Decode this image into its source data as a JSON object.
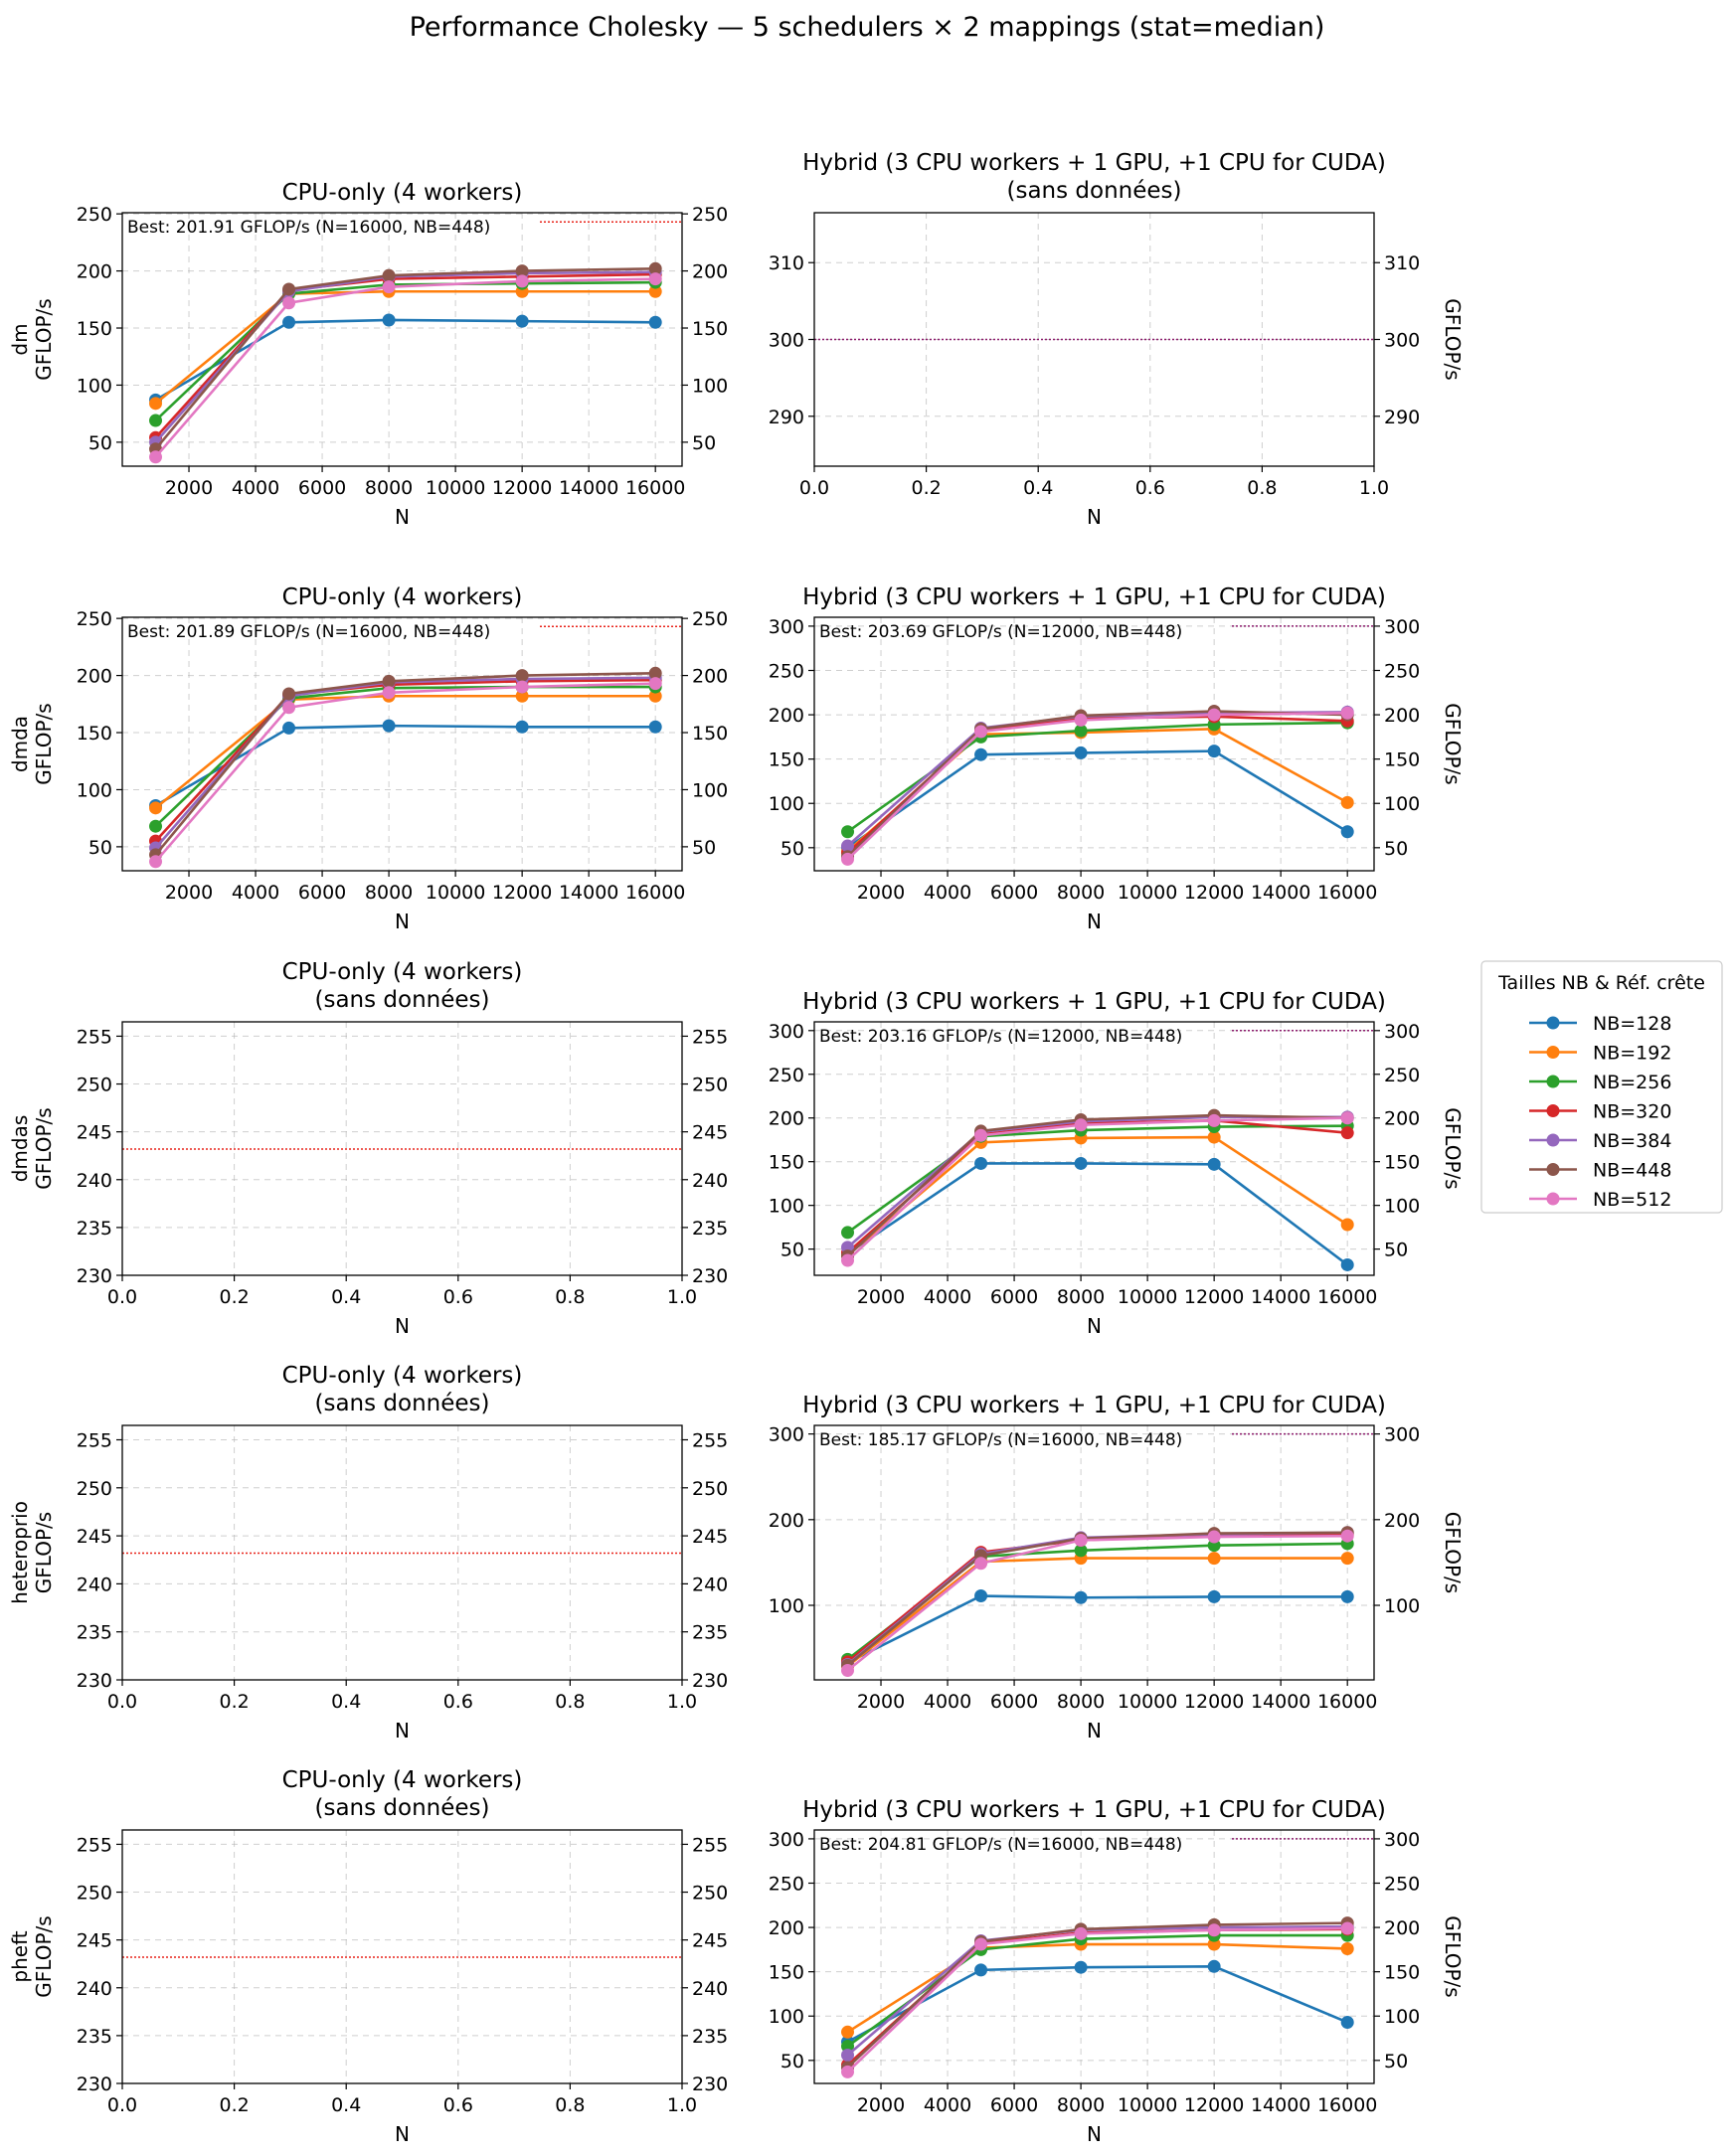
{
  "title": "Performance Cholesky — 5 schedulers × 2 mappings  (stat=median)",
  "colors": {
    "NB=128": "#1f77b4",
    "NB=192": "#ff7f0e",
    "NB=256": "#2ca02c",
    "NB=320": "#d62728",
    "NB=384": "#9467bd",
    "NB=448": "#8c564b",
    "NB=512": "#e377c2",
    "cpu_ref": "#e8231a",
    "hyb_ref": "#8b1a6b"
  },
  "legend": {
    "title": "Tailles NB & Réf. crête",
    "entries": [
      "NB=128",
      "NB=192",
      "NB=256",
      "NB=320",
      "NB=384",
      "NB=448",
      "NB=512"
    ]
  },
  "chart_data": [
    {
      "type": "line",
      "scheduler": "dm",
      "title": "CPU-only (4 workers)",
      "subtitle": "",
      "xlabel": "N",
      "ylabel": "GFLOP/s",
      "ylim": [
        29,
        251
      ],
      "xlim": [
        0,
        16800
      ],
      "yticks": [
        50,
        100,
        150,
        200,
        250
      ],
      "xticks": [
        2000,
        4000,
        6000,
        8000,
        10000,
        12000,
        14000,
        16000
      ],
      "ref_line": 243,
      "best_label": "Best: 201.91 GFLOP/s (N=16000, NB=448)",
      "grid": true,
      "x": [
        1000,
        5000,
        8000,
        12000,
        16000
      ],
      "series": [
        {
          "name": "NB=128",
          "values": [
            87,
            155,
            157,
            156,
            155
          ]
        },
        {
          "name": "NB=192",
          "values": [
            84,
            180,
            182,
            182,
            182
          ]
        },
        {
          "name": "NB=256",
          "values": [
            69,
            180,
            188,
            189,
            190
          ]
        },
        {
          "name": "NB=320",
          "values": [
            54,
            183,
            193,
            195,
            197
          ]
        },
        {
          "name": "NB=384",
          "values": [
            50,
            182,
            195,
            198,
            199
          ]
        },
        {
          "name": "NB=448",
          "values": [
            44,
            184,
            196,
            200,
            202
          ]
        },
        {
          "name": "NB=512",
          "values": [
            37,
            172,
            186,
            191,
            193
          ]
        }
      ]
    },
    {
      "type": "line",
      "scheduler": "dm",
      "title": "Hybrid (3 CPU workers + 1 GPU, +1 CPU for CUDA)",
      "subtitle": "(sans données)",
      "xlabel": "N",
      "ylabel": "GFLOP/s",
      "ylim": [
        283.5,
        316.5
      ],
      "xlim": [
        0,
        1
      ],
      "yticks": [
        290,
        300,
        310
      ],
      "xticks": [
        0.0,
        0.2,
        0.4,
        0.6,
        0.8,
        1.0
      ],
      "ref_line": 300,
      "best_label": "",
      "grid": true,
      "x": [],
      "series": []
    },
    {
      "type": "line",
      "scheduler": "dmda",
      "title": "CPU-only (4 workers)",
      "subtitle": "",
      "xlabel": "N",
      "ylabel": "GFLOP/s",
      "ylim": [
        29,
        251
      ],
      "xlim": [
        0,
        16800
      ],
      "yticks": [
        50,
        100,
        150,
        200,
        250
      ],
      "xticks": [
        2000,
        4000,
        6000,
        8000,
        10000,
        12000,
        14000,
        16000
      ],
      "ref_line": 243,
      "best_label": "Best: 201.89 GFLOP/s (N=16000, NB=448)",
      "grid": true,
      "x": [
        1000,
        5000,
        8000,
        12000,
        16000
      ],
      "series": [
        {
          "name": "NB=128",
          "values": [
            86,
            154,
            156,
            155,
            155
          ]
        },
        {
          "name": "NB=192",
          "values": [
            84,
            179,
            182,
            182,
            182
          ]
        },
        {
          "name": "NB=256",
          "values": [
            68,
            180,
            189,
            190,
            190
          ]
        },
        {
          "name": "NB=320",
          "values": [
            55,
            183,
            192,
            195,
            196
          ]
        },
        {
          "name": "NB=384",
          "values": [
            49,
            182,
            194,
            197,
            198
          ]
        },
        {
          "name": "NB=448",
          "values": [
            43,
            184,
            195,
            200,
            202
          ]
        },
        {
          "name": "NB=512",
          "values": [
            37,
            172,
            185,
            190,
            193
          ]
        }
      ]
    },
    {
      "type": "line",
      "scheduler": "dmda",
      "title": "Hybrid (3 CPU workers + 1 GPU, +1 CPU for CUDA)",
      "subtitle": "",
      "xlabel": "N",
      "ylabel": "GFLOP/s",
      "ylim": [
        24,
        310
      ],
      "xlim": [
        0,
        16800
      ],
      "yticks": [
        50,
        100,
        150,
        200,
        250,
        300
      ],
      "xticks": [
        2000,
        4000,
        6000,
        8000,
        10000,
        12000,
        14000,
        16000
      ],
      "ref_line": 300,
      "best_label": "Best: 203.69 GFLOP/s (N=12000, NB=448)",
      "grid": true,
      "x": [
        1000,
        5000,
        8000,
        12000,
        16000
      ],
      "series": [
        {
          "name": "NB=128",
          "values": [
            50,
            155,
            157,
            159,
            68
          ]
        },
        {
          "name": "NB=192",
          "values": [
            46,
            178,
            180,
            184,
            101
          ]
        },
        {
          "name": "NB=256",
          "values": [
            68,
            175,
            182,
            189,
            191
          ]
        },
        {
          "name": "NB=320",
          "values": [
            44,
            182,
            196,
            198,
            193
          ]
        },
        {
          "name": "NB=384",
          "values": [
            52,
            185,
            198,
            202,
            203
          ]
        },
        {
          "name": "NB=448",
          "values": [
            40,
            184,
            199,
            204,
            200
          ]
        },
        {
          "name": "NB=512",
          "values": [
            37,
            181,
            194,
            200,
            202
          ]
        }
      ]
    },
    {
      "type": "line",
      "scheduler": "dmdas",
      "title": "CPU-only (4 workers)",
      "subtitle": "(sans données)",
      "xlabel": "N",
      "ylabel": "GFLOP/s",
      "ylim": [
        230,
        256.5
      ],
      "xlim": [
        0,
        1
      ],
      "yticks": [
        230,
        235,
        240,
        245,
        250,
        255
      ],
      "xticks": [
        0.0,
        0.2,
        0.4,
        0.6,
        0.8,
        1.0
      ],
      "ref_line": 243.2,
      "best_label": "",
      "grid": true,
      "x": [],
      "series": []
    },
    {
      "type": "line",
      "scheduler": "dmdas",
      "title": "Hybrid (3 CPU workers + 1 GPU, +1 CPU for CUDA)",
      "subtitle": "",
      "xlabel": "N",
      "ylabel": "GFLOP/s",
      "ylim": [
        20,
        310
      ],
      "xlim": [
        0,
        16800
      ],
      "yticks": [
        50,
        100,
        150,
        200,
        250,
        300
      ],
      "xticks": [
        2000,
        4000,
        6000,
        8000,
        10000,
        12000,
        14000,
        16000
      ],
      "ref_line": 300,
      "best_label": "Best: 203.16 GFLOP/s (N=12000, NB=448)",
      "grid": true,
      "x": [
        1000,
        5000,
        8000,
        12000,
        16000
      ],
      "series": [
        {
          "name": "NB=128",
          "values": [
            45,
            148,
            148,
            147,
            32
          ]
        },
        {
          "name": "NB=192",
          "values": [
            43,
            172,
            177,
            178,
            78
          ]
        },
        {
          "name": "NB=256",
          "values": [
            69,
            179,
            186,
            190,
            191
          ]
        },
        {
          "name": "NB=320",
          "values": [
            46,
            181,
            194,
            197,
            183
          ]
        },
        {
          "name": "NB=384",
          "values": [
            52,
            184,
            196,
            201,
            201
          ]
        },
        {
          "name": "NB=448",
          "values": [
            42,
            185,
            198,
            203,
            200
          ]
        },
        {
          "name": "NB=512",
          "values": [
            37,
            180,
            192,
            197,
            200
          ]
        }
      ]
    },
    {
      "type": "line",
      "scheduler": "heteroprio",
      "title": "CPU-only (4 workers)",
      "subtitle": "(sans données)",
      "xlabel": "N",
      "ylabel": "GFLOP/s",
      "ylim": [
        230,
        256.5
      ],
      "xlim": [
        0,
        1
      ],
      "yticks": [
        230,
        235,
        240,
        245,
        250,
        255
      ],
      "xticks": [
        0.0,
        0.2,
        0.4,
        0.6,
        0.8,
        1.0
      ],
      "ref_line": 243.2,
      "best_label": "",
      "grid": true,
      "x": [],
      "series": []
    },
    {
      "type": "line",
      "scheduler": "heteroprio",
      "title": "Hybrid (3 CPU workers + 1 GPU, +1 CPU for CUDA)",
      "subtitle": "",
      "xlabel": "N",
      "ylabel": "GFLOP/s",
      "ylim": [
        13,
        310
      ],
      "xlim": [
        0,
        16800
      ],
      "yticks": [
        100,
        200,
        300
      ],
      "xticks": [
        2000,
        4000,
        6000,
        8000,
        10000,
        12000,
        14000,
        16000
      ],
      "ref_line": 300,
      "best_label": "Best: 185.17 GFLOP/s (N=16000, NB=448)",
      "grid": true,
      "x": [
        1000,
        5000,
        8000,
        12000,
        16000
      ],
      "series": [
        {
          "name": "NB=128",
          "values": [
            33,
            111,
            109,
            110,
            110
          ]
        },
        {
          "name": "NB=192",
          "values": [
            29,
            151,
            155,
            155,
            155
          ]
        },
        {
          "name": "NB=256",
          "values": [
            37,
            157,
            164,
            170,
            172
          ]
        },
        {
          "name": "NB=320",
          "values": [
            34,
            162,
            176,
            182,
            183
          ]
        },
        {
          "name": "NB=384",
          "values": [
            31,
            160,
            179,
            183,
            185
          ]
        },
        {
          "name": "NB=448",
          "values": [
            30,
            158,
            178,
            184,
            185
          ]
        },
        {
          "name": "NB=512",
          "values": [
            24,
            149,
            176,
            180,
            181
          ]
        }
      ]
    },
    {
      "type": "line",
      "scheduler": "pheft",
      "title": "CPU-only (4 workers)",
      "subtitle": "(sans données)",
      "xlabel": "N",
      "ylabel": "GFLOP/s",
      "ylim": [
        230,
        256.5
      ],
      "xlim": [
        0,
        1
      ],
      "yticks": [
        230,
        235,
        240,
        245,
        250,
        255
      ],
      "xticks": [
        0.0,
        0.2,
        0.4,
        0.6,
        0.8,
        1.0
      ],
      "ref_line": 243.2,
      "best_label": "",
      "grid": true,
      "x": [],
      "series": []
    },
    {
      "type": "line",
      "scheduler": "pheft",
      "title": "Hybrid (3 CPU workers + 1 GPU, +1 CPU for CUDA)",
      "subtitle": "",
      "xlabel": "N",
      "ylabel": "GFLOP/s",
      "ylim": [
        24,
        310
      ],
      "xlim": [
        0,
        16800
      ],
      "yticks": [
        50,
        100,
        150,
        200,
        250,
        300
      ],
      "xticks": [
        2000,
        4000,
        6000,
        8000,
        10000,
        12000,
        14000,
        16000
      ],
      "ref_line": 300,
      "best_label": "Best: 204.81 GFLOP/s (N=16000, NB=448)",
      "grid": true,
      "x": [
        1000,
        5000,
        8000,
        12000,
        16000
      ],
      "series": [
        {
          "name": "NB=128",
          "values": [
            71,
            152,
            155,
            156,
            93
          ]
        },
        {
          "name": "NB=192",
          "values": [
            82,
            177,
            181,
            181,
            176
          ]
        },
        {
          "name": "NB=256",
          "values": [
            66,
            175,
            187,
            191,
            191
          ]
        },
        {
          "name": "NB=320",
          "values": [
            45,
            182,
            194,
            197,
            198
          ]
        },
        {
          "name": "NB=384",
          "values": [
            56,
            185,
            197,
            200,
            201
          ]
        },
        {
          "name": "NB=448",
          "values": [
            42,
            184,
            198,
            203,
            205
          ]
        },
        {
          "name": "NB=512",
          "values": [
            37,
            181,
            193,
            197,
            199
          ]
        }
      ]
    }
  ]
}
